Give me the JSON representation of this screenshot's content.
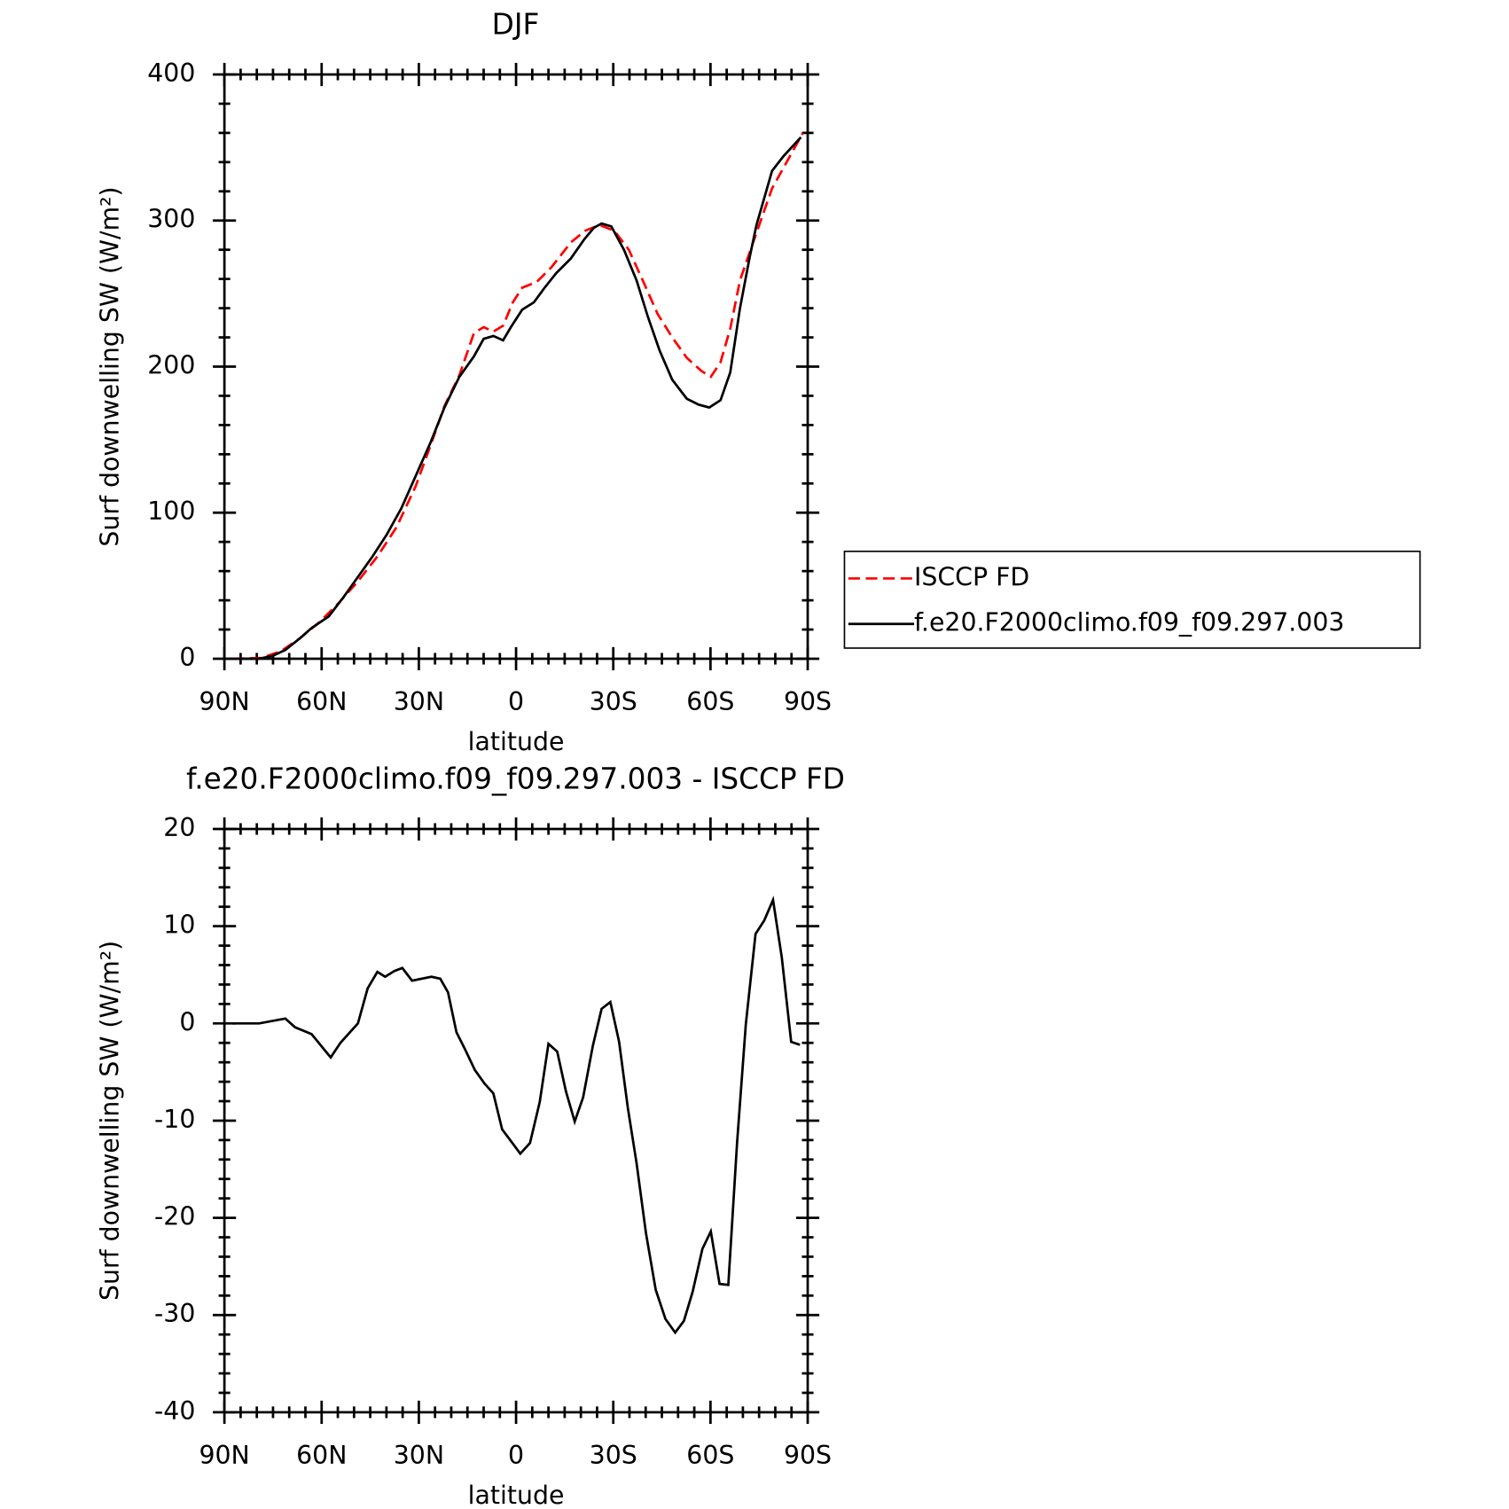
{
  "chart_data": [
    {
      "type": "line",
      "title": "DJF",
      "xlabel": "latitude",
      "ylabel": "Surf downwelling SW (W/m²)",
      "xlim": [
        90,
        -90
      ],
      "xticks": [
        {
          "value": 90,
          "label": "90N"
        },
        {
          "value": 60,
          "label": "60N"
        },
        {
          "value": 30,
          "label": "30N"
        },
        0,
        {
          "value": -30,
          "label": "30S"
        },
        {
          "value": -60,
          "label": "60S"
        },
        {
          "value": -90,
          "label": "90S"
        }
      ],
      "ylim": [
        0,
        400
      ],
      "yticks": [
        0,
        100,
        200,
        300,
        400
      ],
      "legend": "outside-right",
      "series": [
        {
          "name": "ISCCP FD",
          "color": "#ff0000",
          "dashed": true,
          "x": [
            87.6,
            78.7,
            72.7,
            66.7,
            60.7,
            54.8,
            48.8,
            42.8,
            36.9,
            31.0,
            26.4,
            22.1,
            17.5,
            13.0,
            10.0,
            7.0,
            4.0,
            1.0,
            -1.9,
            -6.4,
            -10.9,
            -16.9,
            -21.3,
            -25.8,
            -30.3,
            -34.8,
            -39.3,
            -43.7,
            -48.2,
            -52.7,
            -57.2,
            -60.1,
            -63.1,
            -66.1,
            -69.1,
            -73.0,
            -79.0,
            -84.0,
            -88.5
          ],
          "values": [
            0,
            0.5,
            5,
            14,
            25,
            38,
            53,
            70,
            90,
            118,
            146,
            173,
            194,
            223,
            227,
            224,
            228,
            244,
            254,
            258,
            268,
            285,
            293,
            297,
            293,
            280,
            258,
            236,
            220,
            206,
            197,
            193,
            203,
            226,
            259,
            284,
            322,
            342,
            360
          ]
        },
        {
          "name": "f.e20.F2000climo.f09_f09.297.003",
          "color": "#000000",
          "dashed": false,
          "x": [
            87.6,
            79.3,
            75.1,
            71.2,
            66.7,
            63.1,
            57.8,
            53.3,
            48.8,
            44.3,
            39.9,
            35.4,
            31.0,
            26.4,
            22.1,
            17.5,
            13.0,
            10.0,
            7.0,
            4.0,
            1.6,
            -1.9,
            -5.5,
            -8.8,
            -12.4,
            -16.9,
            -21.0,
            -24.0,
            -26.4,
            -29.4,
            -33.3,
            -37.2,
            -40.7,
            -44.3,
            -48.2,
            -52.7,
            -56.3,
            -59.6,
            -63.1,
            -66.1,
            -69.1,
            -72.1,
            -74.2,
            -79.0,
            -82.5,
            -87.9
          ],
          "values": [
            0,
            0,
            2,
            6,
            14,
            21,
            29,
            42,
            56,
            70,
            85,
            103,
            125,
            148,
            172,
            193,
            207,
            219,
            221,
            218,
            227,
            239,
            244,
            254,
            264,
            274,
            287,
            295,
            298,
            296,
            280,
            259,
            234,
            211,
            191,
            178,
            174,
            172,
            177,
            196,
            240,
            275,
            297,
            334,
            344,
            357
          ]
        }
      ]
    },
    {
      "type": "line",
      "title": "f.e20.F2000climo.f09_f09.297.003 - ISCCP FD",
      "xlabel": "latitude",
      "ylabel": "Surf downwelling SW (W/m²)",
      "xlim": [
        90,
        -90
      ],
      "xticks": [
        {
          "value": 90,
          "label": "90N"
        },
        {
          "value": 60,
          "label": "60N"
        },
        {
          "value": 30,
          "label": "30N"
        },
        0,
        {
          "value": -30,
          "label": "30S"
        },
        {
          "value": -60,
          "label": "60S"
        },
        {
          "value": -90,
          "label": "90S"
        }
      ],
      "ylim": [
        -40,
        20
      ],
      "yticks": [
        -40,
        -30,
        -20,
        -10,
        0,
        10,
        20
      ],
      "series": [
        {
          "color": "#000000",
          "dashed": false,
          "x": [
            87.6,
            79.3,
            71.2,
            68.2,
            63.1,
            57.2,
            54.2,
            48.8,
            45.8,
            42.8,
            40.4,
            37.5,
            35.1,
            32.1,
            26.1,
            23.4,
            21.0,
            18.4,
            15.7,
            12.7,
            9.7,
            7.0,
            4.3,
            1.6,
            -1.3,
            -4.3,
            -7.3,
            -10.0,
            -12.7,
            -15.4,
            -18.1,
            -20.7,
            -23.7,
            -26.4,
            -29.1,
            -31.8,
            -34.5,
            -37.2,
            -40.1,
            -43.1,
            -46.1,
            -49.1,
            -51.8,
            -54.5,
            -57.5,
            -60.1,
            -62.8,
            -65.5,
            -68.2,
            -70.9,
            -73.9,
            -76.6,
            -79.3,
            -82.0,
            -84.9,
            -87.6
          ],
          "values": [
            0,
            0,
            0.5,
            -0.4,
            -1.1,
            -3.5,
            -2,
            0,
            3.6,
            5.3,
            4.8,
            5.4,
            5.7,
            4.4,
            4.8,
            4.6,
            3.2,
            -0.9,
            -2.7,
            -4.8,
            -6.2,
            -7.2,
            -10.9,
            -12.1,
            -13.4,
            -12.3,
            -8.1,
            -2.1,
            -2.9,
            -7.0,
            -10.1,
            -7.6,
            -2.3,
            1.5,
            2.2,
            -1.9,
            -8.7,
            -14.4,
            -21.6,
            -27.4,
            -30.4,
            -31.8,
            -30.6,
            -27.6,
            -23.2,
            -21.4,
            -26.8,
            -26.9,
            -12.3,
            -0.1,
            9.2,
            10.6,
            12.7,
            6.8,
            -1.9,
            -2.2
          ]
        }
      ]
    }
  ]
}
